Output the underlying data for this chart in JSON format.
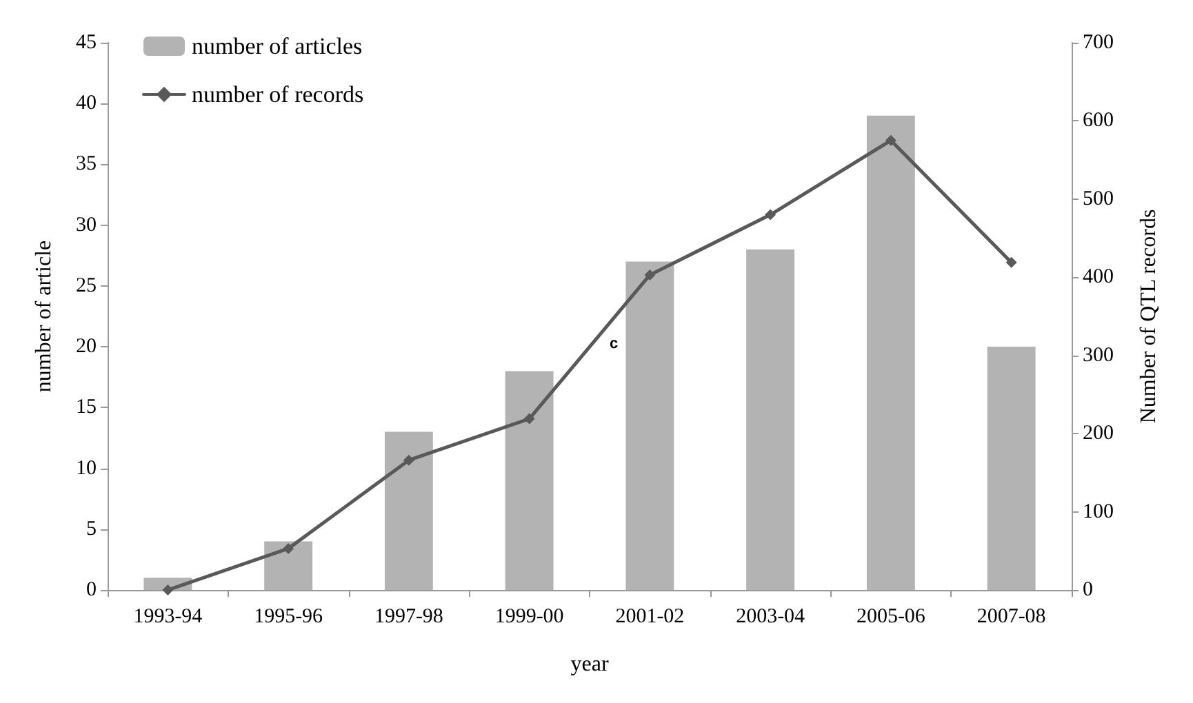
{
  "chart_data": {
    "type": "bar",
    "xlabel": "year",
    "ylabel": "number of article",
    "y2label": "Number of QTL records",
    "categories": [
      "1993-94",
      "1995-96",
      "1997-98",
      "1999-00",
      "2001-02",
      "2003-04",
      "2005-06",
      "2007-08"
    ],
    "series": [
      {
        "name": "number of articles",
        "color": "#b3b3b3",
        "values": [
          1,
          4,
          13,
          18,
          27,
          28,
          39,
          20
        ]
      },
      {
        "name": "number of records",
        "type": "line",
        "axis": "y2",
        "color": "#595959",
        "marker": "diamond",
        "line_style": "solid",
        "values": [
          0,
          53,
          166,
          219,
          403,
          480,
          575,
          419
        ]
      }
    ],
    "ylim": [
      0,
      45
    ],
    "yticks": [
      0,
      5,
      10,
      15,
      20,
      25,
      30,
      35,
      40,
      45
    ],
    "y2lim": [
      0,
      700
    ],
    "y2ticks": [
      0,
      100,
      200,
      300,
      400,
      500,
      600,
      700
    ],
    "grid": false,
    "legend": "top left",
    "annotations": [
      "c"
    ]
  }
}
